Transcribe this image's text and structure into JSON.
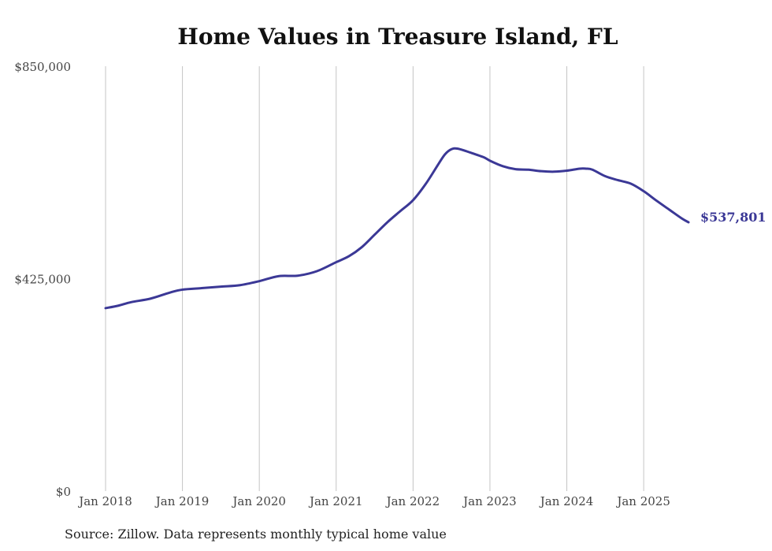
{
  "chart_data": {
    "type": "line",
    "title": "Home Values in Treasure Island, FL",
    "xlabel": "",
    "ylabel": "",
    "ylim": [
      0,
      850000
    ],
    "yticks": [
      {
        "value": 0,
        "label": "$0"
      },
      {
        "value": 425000,
        "label": "$425,000"
      },
      {
        "value": 850000,
        "label": "$850,000"
      }
    ],
    "xlim": [
      2018.0,
      2025.583
    ],
    "xticks": [
      {
        "value": 2018,
        "label": "Jan 2018"
      },
      {
        "value": 2019,
        "label": "Jan 2019"
      },
      {
        "value": 2020,
        "label": "Jan 2020"
      },
      {
        "value": 2021,
        "label": "Jan 2021"
      },
      {
        "value": 2022,
        "label": "Jan 2022"
      },
      {
        "value": 2023,
        "label": "Jan 2023"
      },
      {
        "value": 2024,
        "label": "Jan 2024"
      },
      {
        "value": 2025,
        "label": "Jan 2025"
      }
    ],
    "grid": "vertical",
    "legend": "none",
    "series": [
      {
        "color": "#3b3896",
        "end_label": "$537,801",
        "x": [
          2018.0,
          2018.167,
          2018.333,
          2018.583,
          2018.833,
          2019.0,
          2019.25,
          2019.5,
          2019.75,
          2020.0,
          2020.25,
          2020.5,
          2020.75,
          2021.0,
          2021.167,
          2021.333,
          2021.5,
          2021.667,
          2021.833,
          2022.0,
          2022.167,
          2022.333,
          2022.417,
          2022.5,
          2022.583,
          2022.75,
          2022.917,
          2023.0,
          2023.167,
          2023.333,
          2023.5,
          2023.667,
          2023.833,
          2024.0,
          2024.167,
          2024.25,
          2024.333,
          2024.5,
          2024.667,
          2024.833,
          2025.0,
          2025.167,
          2025.333,
          2025.5,
          2025.583
        ],
        "values": [
          366000,
          371000,
          378000,
          385000,
          397000,
          403000,
          406000,
          409000,
          412000,
          420000,
          430000,
          431000,
          440000,
          458000,
          470000,
          488000,
          513000,
          538000,
          560000,
          582000,
          615000,
          655000,
          674000,
          684000,
          685000,
          677000,
          668000,
          661000,
          650000,
          644000,
          643000,
          640000,
          639000,
          641000,
          645000,
          645000,
          643000,
          630000,
          622000,
          615000,
          600000,
          581000,
          563000,
          545000,
          537801
        ]
      }
    ]
  },
  "source_text": "Source: Zillow. Data represents monthly typical home value"
}
